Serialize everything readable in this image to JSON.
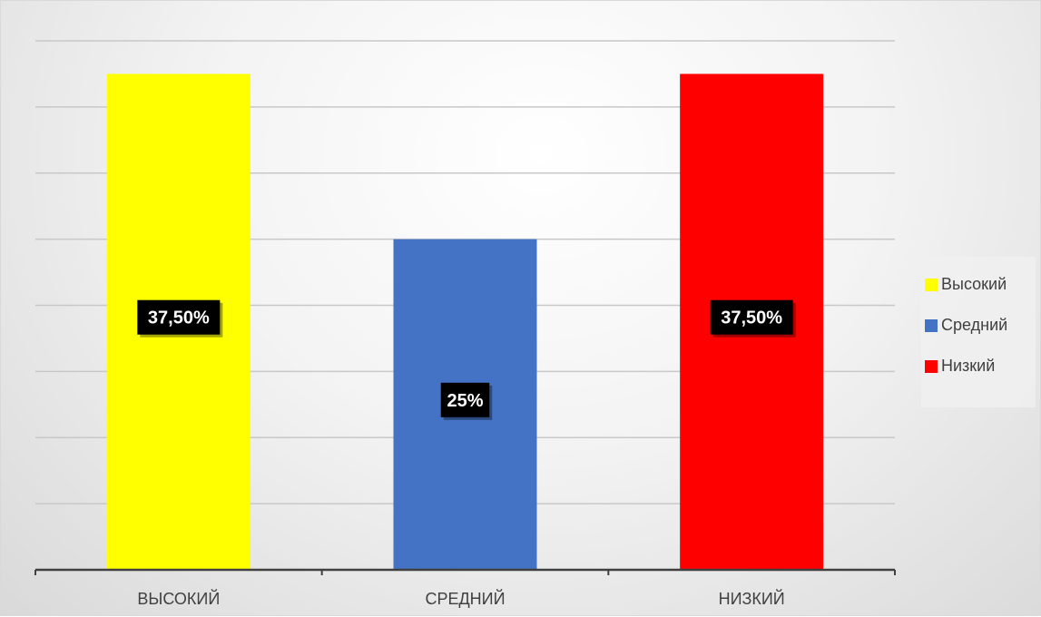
{
  "chart_data": {
    "type": "bar",
    "categories": [
      "ВЫСОКИЙ",
      "СРЕДНИЙ",
      "НИЗКИЙ"
    ],
    "values": [
      37.5,
      25,
      37.5
    ],
    "data_labels": [
      "37,50%",
      "25%",
      "37,50%"
    ],
    "colors": [
      "#FFFF00",
      "#4472C4",
      "#FF0000"
    ],
    "ylim": [
      0,
      40
    ],
    "grid": true,
    "legend": {
      "position": "right",
      "entries": [
        {
          "label": "Высокий",
          "color": "#FFFF00"
        },
        {
          "label": "Средний",
          "color": "#4472C4"
        },
        {
          "label": "Низкий",
          "color": "#FF0000"
        }
      ]
    }
  }
}
